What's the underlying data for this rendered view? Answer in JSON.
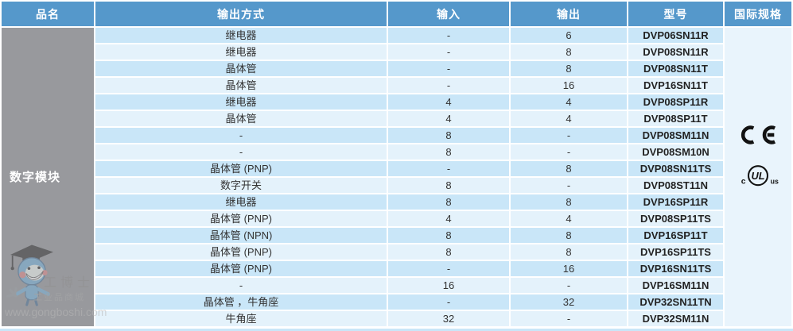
{
  "colors": {
    "header_bg": "#5598cb",
    "category_bg": "#98999d",
    "row_dark": "#c9e6f8",
    "row_light": "#e4f2fb",
    "intl_bg": "#e9f4fc",
    "text_dark": "#333333"
  },
  "header": {
    "columns": [
      {
        "label": "品名"
      },
      {
        "label": "输出方式"
      },
      {
        "label": "输入"
      },
      {
        "label": "输出"
      },
      {
        "label": "型号"
      },
      {
        "label": "国际规格"
      }
    ]
  },
  "category": "数字模块",
  "rows": [
    {
      "output_method": "继电器",
      "input": "-",
      "output": "6",
      "model": "DVP06SN11R"
    },
    {
      "output_method": "继电器",
      "input": "-",
      "output": "8",
      "model": "DVP08SN11R"
    },
    {
      "output_method": "晶体管",
      "input": "-",
      "output": "8",
      "model": "DVP08SN11T"
    },
    {
      "output_method": "晶体管",
      "input": "-",
      "output": "16",
      "model": "DVP16SN11T"
    },
    {
      "output_method": "继电器",
      "input": "4",
      "output": "4",
      "model": "DVP08SP11R"
    },
    {
      "output_method": "晶体管",
      "input": "4",
      "output": "4",
      "model": "DVP08SP11T"
    },
    {
      "output_method": "-",
      "input": "8",
      "output": "-",
      "model": "DVP08SM11N"
    },
    {
      "output_method": "-",
      "input": "8",
      "output": "-",
      "model": "DVP08SM10N"
    },
    {
      "output_method": "晶体管 (PNP)",
      "input": "-",
      "output": "8",
      "model": "DVP08SN11TS"
    },
    {
      "output_method": "数字开关",
      "input": "8",
      "output": "-",
      "model": "DVP08ST11N"
    },
    {
      "output_method": "继电器",
      "input": "8",
      "output": "8",
      "model": "DVP16SP11R"
    },
    {
      "output_method": "晶体管 (PNP)",
      "input": "4",
      "output": "4",
      "model": "DVP08SP11TS"
    },
    {
      "output_method": "晶体管 (NPN)",
      "input": "8",
      "output": "8",
      "model": "DVP16SP11T"
    },
    {
      "output_method": "晶体管 (PNP)",
      "input": "8",
      "output": "8",
      "model": "DVP16SP11TS"
    },
    {
      "output_method": "晶体管 (PNP)",
      "input": "-",
      "output": "16",
      "model": "DVP16SN11TS"
    },
    {
      "output_method": "-",
      "input": "16",
      "output": "-",
      "model": "DVP16SM11N"
    },
    {
      "output_method": "晶体管 ，牛角座",
      "input": "-",
      "output": "32",
      "model": "DVP32SN11TN"
    },
    {
      "output_method": "牛角座",
      "input": "32",
      "output": "-",
      "model": "DVP32SM11N"
    }
  ],
  "certifications": {
    "ul_left": "c",
    "ul_inner": "UL",
    "ul_right": "us"
  },
  "watermark": {
    "brand": "工博士",
    "tagline": "工业品商城",
    "url": "www.gongboshi.com",
    "registered_mark": "®"
  }
}
